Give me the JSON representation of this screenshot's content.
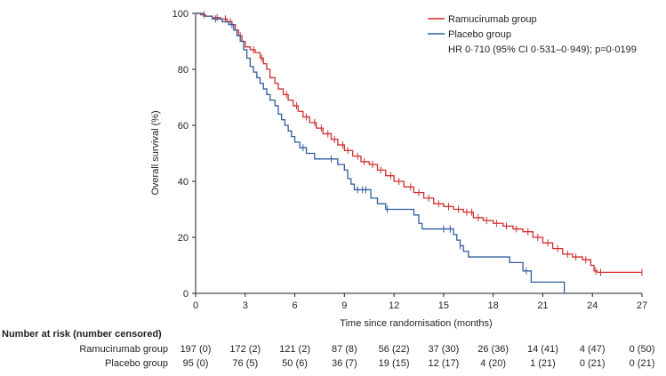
{
  "chart_data": {
    "type": "line",
    "subtype": "kaplan-meier",
    "xlabel": "Time since randomisation (months)",
    "ylabel": "Overall survival (%)",
    "xlim": [
      0,
      27
    ],
    "ylim": [
      0,
      100
    ],
    "x_ticks": [
      0,
      3,
      6,
      9,
      12,
      15,
      18,
      21,
      24,
      27
    ],
    "y_ticks": [
      0,
      20,
      40,
      60,
      80,
      100
    ],
    "legend": {
      "position": "top-right",
      "entries": [
        {
          "name": "Ramucirumab group",
          "color": "#d22f2f"
        },
        {
          "name": "Placebo group",
          "color": "#2e5e9e"
        }
      ],
      "annotation": "HR 0·710 (95% CI 0·531–0·949); p=0·0199"
    },
    "series": [
      {
        "name": "Ramucirumab group",
        "color": "#d22f2f",
        "steps": [
          [
            0,
            100
          ],
          [
            0.3,
            99.5
          ],
          [
            0.6,
            99
          ],
          [
            1.0,
            98.5
          ],
          [
            1.5,
            98
          ],
          [
            1.9,
            97
          ],
          [
            2.2,
            96
          ],
          [
            2.4,
            94
          ],
          [
            2.6,
            92
          ],
          [
            2.8,
            90
          ],
          [
            3.0,
            88
          ],
          [
            3.3,
            87
          ],
          [
            3.6,
            86
          ],
          [
            3.9,
            84
          ],
          [
            4.1,
            82
          ],
          [
            4.3,
            80
          ],
          [
            4.5,
            77
          ],
          [
            4.8,
            75
          ],
          [
            5.0,
            73
          ],
          [
            5.3,
            71
          ],
          [
            5.6,
            69
          ],
          [
            5.9,
            67
          ],
          [
            6.2,
            65
          ],
          [
            6.5,
            63
          ],
          [
            6.9,
            61
          ],
          [
            7.3,
            59
          ],
          [
            7.7,
            57
          ],
          [
            8.2,
            55
          ],
          [
            8.6,
            53
          ],
          [
            9.0,
            51
          ],
          [
            9.5,
            49
          ],
          [
            10.0,
            47
          ],
          [
            10.5,
            46
          ],
          [
            11.0,
            44
          ],
          [
            11.5,
            42
          ],
          [
            12.0,
            40
          ],
          [
            12.6,
            38
          ],
          [
            13.2,
            36
          ],
          [
            13.8,
            34
          ],
          [
            14.4,
            32
          ],
          [
            15.0,
            31
          ],
          [
            15.6,
            30
          ],
          [
            16.2,
            29
          ],
          [
            16.8,
            27
          ],
          [
            17.4,
            26
          ],
          [
            18.0,
            25
          ],
          [
            18.6,
            24
          ],
          [
            19.2,
            23
          ],
          [
            19.8,
            22
          ],
          [
            20.4,
            20
          ],
          [
            21.0,
            18
          ],
          [
            21.6,
            16
          ],
          [
            22.2,
            14
          ],
          [
            22.8,
            13
          ],
          [
            23.4,
            12
          ],
          [
            23.9,
            10
          ],
          [
            24.1,
            8
          ],
          [
            24.3,
            7.5
          ],
          [
            27,
            7.5
          ]
        ],
        "censor_times": [
          0.5,
          1.3,
          1.8,
          2.1,
          2.7,
          3.5,
          4.0,
          5.5,
          6.1,
          6.7,
          7.2,
          7.6,
          8.0,
          8.4,
          8.9,
          9.2,
          9.8,
          10.2,
          10.7,
          11.2,
          11.8,
          12.3,
          13.0,
          13.5,
          14.1,
          14.7,
          15.3,
          15.9,
          16.4,
          16.7,
          17.1,
          17.6,
          18.2,
          18.8,
          19.4,
          20.1,
          20.7,
          21.3,
          21.9,
          22.5,
          23.0,
          23.6,
          24.2,
          24.5,
          27.0
        ]
      },
      {
        "name": "Placebo group",
        "color": "#2e5e9e",
        "steps": [
          [
            0,
            100
          ],
          [
            0.5,
            99
          ],
          [
            1.0,
            98
          ],
          [
            1.6,
            97
          ],
          [
            2.0,
            96
          ],
          [
            2.3,
            94
          ],
          [
            2.5,
            92
          ],
          [
            2.7,
            90
          ],
          [
            2.9,
            87
          ],
          [
            3.1,
            84
          ],
          [
            3.3,
            81
          ],
          [
            3.5,
            79
          ],
          [
            3.7,
            77
          ],
          [
            3.9,
            75
          ],
          [
            4.1,
            73
          ],
          [
            4.3,
            71
          ],
          [
            4.5,
            69
          ],
          [
            4.8,
            67
          ],
          [
            5.0,
            64
          ],
          [
            5.2,
            62
          ],
          [
            5.4,
            60
          ],
          [
            5.6,
            58
          ],
          [
            5.8,
            56
          ],
          [
            6.0,
            54
          ],
          [
            6.3,
            52
          ],
          [
            6.7,
            50
          ],
          [
            7.2,
            48
          ],
          [
            8.6,
            46
          ],
          [
            9.0,
            44
          ],
          [
            9.2,
            41
          ],
          [
            9.4,
            39
          ],
          [
            9.6,
            37
          ],
          [
            10.6,
            34
          ],
          [
            11.0,
            32
          ],
          [
            11.5,
            30
          ],
          [
            13.2,
            28
          ],
          [
            13.5,
            25
          ],
          [
            13.7,
            23
          ],
          [
            15.6,
            21
          ],
          [
            15.8,
            19
          ],
          [
            16.0,
            17
          ],
          [
            16.2,
            15
          ],
          [
            16.5,
            13
          ],
          [
            19.0,
            11
          ],
          [
            19.8,
            8
          ],
          [
            20.3,
            4
          ],
          [
            22.3,
            0
          ]
        ],
        "censor_times": [
          1.2,
          2.2,
          6.5,
          8.2,
          9.8,
          10.1,
          10.3,
          11.6,
          15.0,
          15.4,
          16.0,
          20.0
        ]
      }
    ],
    "number_at_risk": {
      "title": "Number at risk (number censored)",
      "rows": [
        {
          "name": "Ramucirumab group",
          "values": [
            "197 (0)",
            "172 (2)",
            "121 (2)",
            "87 (8)",
            "56 (22)",
            "37 (30)",
            "26 (36)",
            "14 (41)",
            "4 (47)",
            "0 (50)"
          ]
        },
        {
          "name": "Placebo group",
          "values": [
            "95 (0)",
            "76 (5)",
            "50 (6)",
            "36 (7)",
            "19 (15)",
            "12 (17)",
            "4 (20)",
            "1 (21)",
            "0 (21)",
            "0 (21)"
          ]
        }
      ]
    }
  }
}
